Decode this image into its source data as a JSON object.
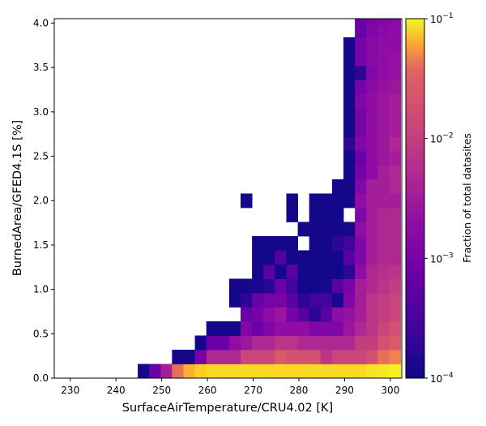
{
  "chart_data": {
    "type": "heatmap",
    "title": "",
    "xlabel": "SurfaceAirTemperature/CRU4.02 [K]",
    "ylabel": "BurnedArea/GFED4.1S [%]",
    "colorbar_label": "Fraction of total datasites",
    "colormap": "plasma",
    "color_scale": "log",
    "xlim": [
      226.5,
      302.5
    ],
    "ylim": [
      0,
      4.05
    ],
    "x_ticks": [
      230,
      240,
      250,
      260,
      270,
      280,
      290,
      300
    ],
    "y_ticks": [
      0.0,
      0.5,
      1.0,
      1.5,
      2.0,
      2.5,
      3.0,
      3.5,
      4.0
    ],
    "x_tick_labels": [
      "230",
      "240",
      "250",
      "260",
      "270",
      "280",
      "290",
      "300"
    ],
    "y_tick_labels": [
      "0.0",
      "0.5",
      "1.0",
      "1.5",
      "2.0",
      "2.5",
      "3.0",
      "3.5",
      "4.0"
    ],
    "colorbar_ticks": [
      0.0001,
      0.001,
      0.01,
      0.1
    ],
    "colorbar_tick_labels": [
      {
        "base": "10",
        "exp": "−4"
      },
      {
        "base": "10",
        "exp": "−3"
      },
      {
        "base": "10",
        "exp": "−2"
      },
      {
        "base": "10",
        "exp": "−1"
      }
    ],
    "color_range": [
      0.0001,
      0.1
    ],
    "x_bin_edges_start": 226.5,
    "x_bin_width": 2.5,
    "y_bin_width": 0.16,
    "grid": false,
    "cells": [
      [
        246,
        0.08,
        0.00011
      ],
      [
        248.5,
        0.08,
        0.0004
      ],
      [
        251,
        0.08,
        0.0012
      ],
      [
        253.5,
        0.08,
        0.008
      ],
      [
        256,
        0.08,
        0.03
      ],
      [
        258.5,
        0.08,
        0.05
      ],
      [
        261,
        0.08,
        0.06
      ],
      [
        263.5,
        0.08,
        0.06
      ],
      [
        266,
        0.08,
        0.06
      ],
      [
        268.5,
        0.08,
        0.06
      ],
      [
        271,
        0.08,
        0.06
      ],
      [
        273.5,
        0.08,
        0.06
      ],
      [
        276,
        0.08,
        0.06
      ],
      [
        278.5,
        0.08,
        0.06
      ],
      [
        281,
        0.08,
        0.06
      ],
      [
        283.5,
        0.08,
        0.06
      ],
      [
        286,
        0.08,
        0.06
      ],
      [
        288.5,
        0.08,
        0.06
      ],
      [
        291,
        0.08,
        0.06
      ],
      [
        293.5,
        0.08,
        0.06
      ],
      [
        296,
        0.08,
        0.07
      ],
      [
        298.5,
        0.08,
        0.08
      ],
      [
        301,
        0.08,
        0.09
      ],
      [
        253.5,
        0.24,
        0.00011
      ],
      [
        256,
        0.24,
        0.00011
      ],
      [
        258.5,
        0.24,
        0.0005
      ],
      [
        261,
        0.24,
        0.0015
      ],
      [
        263.5,
        0.24,
        0.0015
      ],
      [
        266,
        0.24,
        0.0015
      ],
      [
        268.5,
        0.24,
        0.003
      ],
      [
        271,
        0.24,
        0.003
      ],
      [
        273.5,
        0.24,
        0.003
      ],
      [
        276,
        0.24,
        0.005
      ],
      [
        278.5,
        0.24,
        0.004
      ],
      [
        281,
        0.24,
        0.004
      ],
      [
        283.5,
        0.24,
        0.004
      ],
      [
        286,
        0.24,
        0.002
      ],
      [
        288.5,
        0.24,
        0.003
      ],
      [
        291,
        0.24,
        0.003
      ],
      [
        293.5,
        0.24,
        0.003
      ],
      [
        296,
        0.24,
        0.004
      ],
      [
        298.5,
        0.24,
        0.008
      ],
      [
        301,
        0.24,
        0.012
      ],
      [
        258.5,
        0.4,
        0.00011
      ],
      [
        261,
        0.4,
        0.0004
      ],
      [
        263.5,
        0.4,
        0.0004
      ],
      [
        266,
        0.4,
        0.0008
      ],
      [
        268.5,
        0.4,
        0.001
      ],
      [
        271,
        0.4,
        0.0015
      ],
      [
        273.5,
        0.4,
        0.0015
      ],
      [
        276,
        0.4,
        0.002
      ],
      [
        278.5,
        0.4,
        0.002
      ],
      [
        281,
        0.4,
        0.0015
      ],
      [
        283.5,
        0.4,
        0.0015
      ],
      [
        286,
        0.4,
        0.0015
      ],
      [
        288.5,
        0.4,
        0.0015
      ],
      [
        291,
        0.4,
        0.0015
      ],
      [
        293.5,
        0.4,
        0.0025
      ],
      [
        296,
        0.4,
        0.0025
      ],
      [
        298.5,
        0.4,
        0.004
      ],
      [
        301,
        0.4,
        0.005
      ],
      [
        261,
        0.56,
        0.00011
      ],
      [
        263.5,
        0.56,
        0.00011
      ],
      [
        266,
        0.56,
        0.00011
      ],
      [
        268.5,
        0.56,
        0.0006
      ],
      [
        271,
        0.56,
        0.0004
      ],
      [
        273.5,
        0.56,
        0.0006
      ],
      [
        276,
        0.56,
        0.0008
      ],
      [
        278.5,
        0.56,
        0.0008
      ],
      [
        281,
        0.56,
        0.0008
      ],
      [
        283.5,
        0.56,
        0.0006
      ],
      [
        286,
        0.56,
        0.0006
      ],
      [
        288.5,
        0.56,
        0.0006
      ],
      [
        291,
        0.56,
        0.001
      ],
      [
        293.5,
        0.56,
        0.0015
      ],
      [
        296,
        0.56,
        0.002
      ],
      [
        298.5,
        0.56,
        0.003
      ],
      [
        301,
        0.56,
        0.004
      ],
      [
        268.5,
        0.72,
        0.0004
      ],
      [
        271,
        0.72,
        0.0005
      ],
      [
        273.5,
        0.72,
        0.0008
      ],
      [
        276,
        0.72,
        0.001
      ],
      [
        278.5,
        0.72,
        0.0005
      ],
      [
        281,
        0.72,
        0.0003
      ],
      [
        283.5,
        0.72,
        0.00015
      ],
      [
        286,
        0.72,
        0.0003
      ],
      [
        288.5,
        0.72,
        0.0008
      ],
      [
        291,
        0.72,
        0.0009
      ],
      [
        293.5,
        0.72,
        0.0012
      ],
      [
        296,
        0.72,
        0.002
      ],
      [
        298.5,
        0.72,
        0.0025
      ],
      [
        301,
        0.72,
        0.003
      ],
      [
        266,
        0.88,
        0.00011
      ],
      [
        268.5,
        0.88,
        0.00015
      ],
      [
        271,
        0.88,
        0.0004
      ],
      [
        273.5,
        0.88,
        0.0005
      ],
      [
        276,
        0.88,
        0.0005
      ],
      [
        278.5,
        0.88,
        0.0003
      ],
      [
        281,
        0.88,
        0.00015
      ],
      [
        283.5,
        0.88,
        0.0002
      ],
      [
        286,
        0.88,
        0.0002
      ],
      [
        288.5,
        0.88,
        0.00012
      ],
      [
        291,
        0.88,
        0.0006
      ],
      [
        293.5,
        0.88,
        0.0012
      ],
      [
        296,
        0.88,
        0.002
      ],
      [
        298.5,
        0.88,
        0.0025
      ],
      [
        301,
        0.88,
        0.003
      ],
      [
        266,
        1.04,
        0.00011
      ],
      [
        268.5,
        1.04,
        0.00011
      ],
      [
        271,
        1.04,
        0.00012
      ],
      [
        273.5,
        1.04,
        0.00015
      ],
      [
        276,
        1.04,
        0.0004
      ],
      [
        278.5,
        1.04,
        0.0002
      ],
      [
        281,
        1.04,
        0.00011
      ],
      [
        283.5,
        1.04,
        0.00011
      ],
      [
        286,
        1.04,
        0.00012
      ],
      [
        288.5,
        1.04,
        0.0003
      ],
      [
        291,
        1.04,
        0.0005
      ],
      [
        293.5,
        1.04,
        0.0012
      ],
      [
        296,
        1.04,
        0.0015
      ],
      [
        298.5,
        1.04,
        0.002
      ],
      [
        301,
        1.04,
        0.0025
      ],
      [
        271,
        1.2,
        0.00011
      ],
      [
        273.5,
        1.2,
        0.0003
      ],
      [
        276,
        1.2,
        0.00011
      ],
      [
        278.5,
        1.2,
        0.0003
      ],
      [
        281,
        1.2,
        0.00011
      ],
      [
        283.5,
        1.2,
        0.00011
      ],
      [
        286,
        1.2,
        0.00011
      ],
      [
        288.5,
        1.2,
        0.00011
      ],
      [
        291,
        1.2,
        0.00015
      ],
      [
        293.5,
        1.2,
        0.0008
      ],
      [
        296,
        1.2,
        0.0015
      ],
      [
        298.5,
        1.2,
        0.0018
      ],
      [
        301,
        1.2,
        0.002
      ],
      [
        271,
        1.36,
        0.00011
      ],
      [
        273.5,
        1.36,
        0.00011
      ],
      [
        276,
        1.36,
        0.00025
      ],
      [
        278.5,
        1.36,
        0.00011
      ],
      [
        281,
        1.36,
        0.00011
      ],
      [
        283.5,
        1.36,
        0.00011
      ],
      [
        286,
        1.36,
        0.00011
      ],
      [
        288.5,
        1.36,
        0.00011
      ],
      [
        291,
        1.36,
        0.0003
      ],
      [
        293.5,
        1.36,
        0.0006
      ],
      [
        296,
        1.36,
        0.0012
      ],
      [
        298.5,
        1.36,
        0.0015
      ],
      [
        301,
        1.36,
        0.0015
      ],
      [
        271,
        1.52,
        0.00011
      ],
      [
        273.5,
        1.52,
        0.00011
      ],
      [
        276,
        1.52,
        0.00011
      ],
      [
        278.5,
        1.52,
        0.00011
      ],
      [
        283.5,
        1.52,
        0.00011
      ],
      [
        286,
        1.52,
        0.00011
      ],
      [
        288.5,
        1.52,
        0.00015
      ],
      [
        291,
        1.52,
        0.0002
      ],
      [
        293.5,
        1.52,
        0.0006
      ],
      [
        296,
        1.52,
        0.0012
      ],
      [
        298.5,
        1.52,
        0.0015
      ],
      [
        301,
        1.52,
        0.0015
      ],
      [
        281,
        1.68,
        0.00011
      ],
      [
        283.5,
        1.68,
        0.00011
      ],
      [
        286,
        1.68,
        0.00011
      ],
      [
        288.5,
        1.68,
        0.00011
      ],
      [
        291,
        1.68,
        0.00012
      ],
      [
        293.5,
        1.68,
        0.0008
      ],
      [
        296,
        1.68,
        0.0012
      ],
      [
        298.5,
        1.68,
        0.0015
      ],
      [
        301,
        1.68,
        0.0015
      ],
      [
        278.5,
        1.84,
        0.00011
      ],
      [
        283.5,
        1.84,
        0.00011
      ],
      [
        286,
        1.84,
        0.00011
      ],
      [
        288.5,
        1.84,
        0.00011
      ],
      [
        293.5,
        1.84,
        0.0006
      ],
      [
        296,
        1.84,
        0.0012
      ],
      [
        298.5,
        1.84,
        0.0015
      ],
      [
        301,
        1.84,
        0.0015
      ],
      [
        268.5,
        2.0,
        0.00011
      ],
      [
        278.5,
        2.0,
        0.00011
      ],
      [
        283.5,
        2.0,
        0.00011
      ],
      [
        286,
        2.0,
        0.00011
      ],
      [
        288.5,
        2.0,
        0.00011
      ],
      [
        291,
        2.0,
        0.00011
      ],
      [
        293.5,
        2.0,
        0.0008
      ],
      [
        296,
        2.0,
        0.0012
      ],
      [
        298.5,
        2.0,
        0.0012
      ],
      [
        301,
        2.0,
        0.0012
      ],
      [
        288.5,
        2.16,
        0.00011
      ],
      [
        291,
        2.16,
        0.00011
      ],
      [
        293.5,
        2.16,
        0.0006
      ],
      [
        296,
        2.16,
        0.0012
      ],
      [
        298.5,
        2.16,
        0.0012
      ],
      [
        301,
        2.16,
        0.0015
      ],
      [
        291,
        2.32,
        0.00011
      ],
      [
        293.5,
        2.32,
        0.0005
      ],
      [
        296,
        2.32,
        0.0008
      ],
      [
        298.5,
        2.32,
        0.0012
      ],
      [
        301,
        2.32,
        0.0015
      ],
      [
        291,
        2.48,
        0.00011
      ],
      [
        293.5,
        2.48,
        0.0004
      ],
      [
        296,
        2.48,
        0.0008
      ],
      [
        298.5,
        2.48,
        0.001
      ],
      [
        301,
        2.48,
        0.0012
      ],
      [
        291,
        2.64,
        0.00015
      ],
      [
        293.5,
        2.64,
        0.0006
      ],
      [
        296,
        2.64,
        0.0008
      ],
      [
        298.5,
        2.64,
        0.001
      ],
      [
        301,
        2.64,
        0.0015
      ],
      [
        291,
        2.8,
        0.00011
      ],
      [
        293.5,
        2.8,
        0.0005
      ],
      [
        296,
        2.8,
        0.0008
      ],
      [
        298.5,
        2.8,
        0.001
      ],
      [
        301,
        2.8,
        0.0012
      ],
      [
        291,
        2.96,
        0.00011
      ],
      [
        293.5,
        2.96,
        0.0005
      ],
      [
        296,
        2.96,
        0.0008
      ],
      [
        298.5,
        2.96,
        0.001
      ],
      [
        301,
        2.96,
        0.0012
      ],
      [
        291,
        3.12,
        0.00011
      ],
      [
        293.5,
        3.12,
        0.0006
      ],
      [
        296,
        3.12,
        0.0008
      ],
      [
        298.5,
        3.12,
        0.001
      ],
      [
        301,
        3.12,
        0.0012
      ],
      [
        291,
        3.28,
        0.00011
      ],
      [
        293.5,
        3.28,
        0.0005
      ],
      [
        296,
        3.28,
        0.0007
      ],
      [
        298.5,
        3.28,
        0.0009
      ],
      [
        301,
        3.28,
        0.001
      ],
      [
        291,
        3.44,
        0.00011
      ],
      [
        293.5,
        3.44,
        0.00015
      ],
      [
        296,
        3.44,
        0.0006
      ],
      [
        298.5,
        3.44,
        0.0008
      ],
      [
        301,
        3.44,
        0.0009
      ],
      [
        291,
        3.6,
        0.00011
      ],
      [
        293.5,
        3.6,
        0.0005
      ],
      [
        296,
        3.6,
        0.0007
      ],
      [
        298.5,
        3.6,
        0.0008
      ],
      [
        301,
        3.6,
        0.0009
      ],
      [
        291,
        3.76,
        0.00011
      ],
      [
        293.5,
        3.76,
        0.0005
      ],
      [
        296,
        3.76,
        0.0007
      ],
      [
        298.5,
        3.76,
        0.0008
      ],
      [
        301,
        3.76,
        0.0008
      ],
      [
        293.5,
        3.92,
        0.0004
      ],
      [
        296,
        3.92,
        0.0006
      ],
      [
        298.5,
        3.92,
        0.0007
      ],
      [
        301,
        3.92,
        0.0008
      ],
      [
        293.5,
        4.06,
        0.0004
      ],
      [
        296,
        4.06,
        0.0005
      ],
      [
        298.5,
        4.06,
        0.0006
      ],
      [
        301,
        4.06,
        0.0007
      ]
    ]
  }
}
